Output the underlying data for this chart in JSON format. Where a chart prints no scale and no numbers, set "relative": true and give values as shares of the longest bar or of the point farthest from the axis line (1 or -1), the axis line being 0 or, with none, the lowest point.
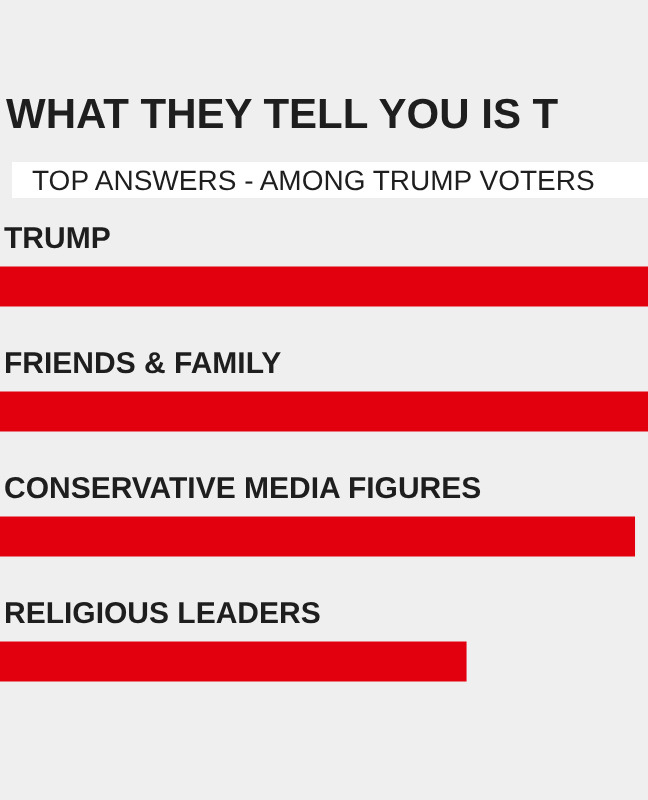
{
  "chart_data": {
    "type": "bar",
    "orientation": "horizontal",
    "relative": true,
    "title": "WHAT THEY TELL YOU IS T",
    "subtitle": "TOP ANSWERS - AMONG TRUMP VOTERS",
    "categories": [
      "TRUMP",
      "FRIENDS & FAMILY",
      "CONSERVATIVE MEDIA FIGURES",
      "RELIGIOUS LEADERS"
    ],
    "values": [
      1,
      1,
      0.98,
      0.72
    ],
    "color": "#e2000f"
  }
}
